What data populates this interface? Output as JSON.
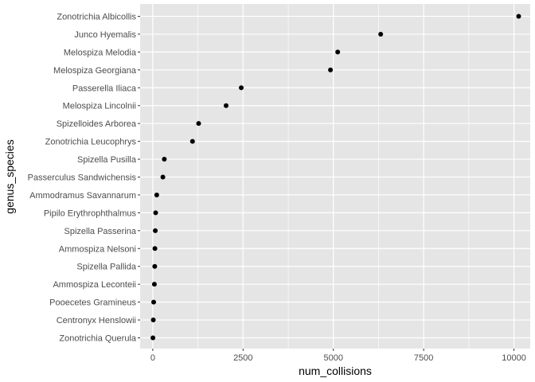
{
  "chart_data": {
    "type": "scatter",
    "xlabel": "num_collisions",
    "ylabel": "genus_species",
    "xlim": [
      -350,
      10450
    ],
    "x_ticks": [
      0,
      2500,
      5000,
      7500,
      10000
    ],
    "x_tick_labels": [
      "0",
      "2500",
      "5000",
      "7500",
      "10000"
    ],
    "grid": true,
    "background": "#E5E5E5",
    "grid_color": "#FFFFFF",
    "point_color": "#000000",
    "categories": [
      "Zonotrichia Albicollis",
      "Junco Hyemalis",
      "Melospiza Melodia",
      "Melospiza Georgiana",
      "Passerella Iliaca",
      "Melospiza Lincolnii",
      "Spizelloides Arborea",
      "Zonotrichia Leucophrys",
      "Spizella Pusilla",
      "Passerculus Sandwichensis",
      "Ammodramus Savannarum",
      "Pipilo Erythrophthalmus",
      "Spizella Passerina",
      "Ammospiza Nelsoni",
      "Spizella Pallida",
      "Ammospiza Leconteii",
      "Pooecetes Gramineus",
      "Centronyx Henslowii",
      "Zonotrichia Querula"
    ],
    "values": [
      10130,
      6310,
      5120,
      4920,
      2450,
      2030,
      1270,
      1100,
      320,
      280,
      110,
      80,
      70,
      60,
      55,
      45,
      25,
      15,
      5
    ]
  }
}
